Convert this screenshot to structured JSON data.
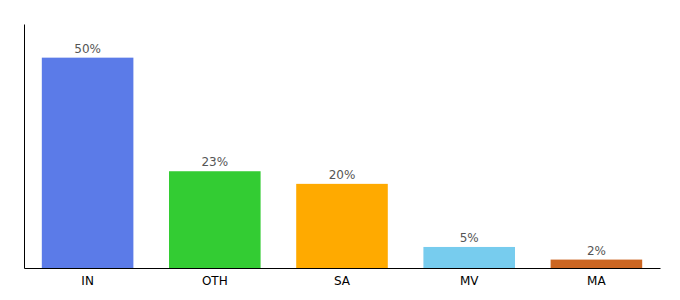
{
  "chart_data": {
    "type": "bar",
    "categories": [
      "IN",
      "OTH",
      "SA",
      "MV",
      "MA"
    ],
    "values": [
      50,
      23,
      20,
      5,
      2
    ],
    "value_labels": [
      "50%",
      "23%",
      "20%",
      "5%",
      "2%"
    ],
    "colors": [
      "#5b7be8",
      "#33cc33",
      "#ffaa00",
      "#77ccee",
      "#cc6622"
    ],
    "ylim": [
      0,
      58
    ],
    "data_labels": true,
    "grid": false,
    "tick_labels": "x"
  }
}
